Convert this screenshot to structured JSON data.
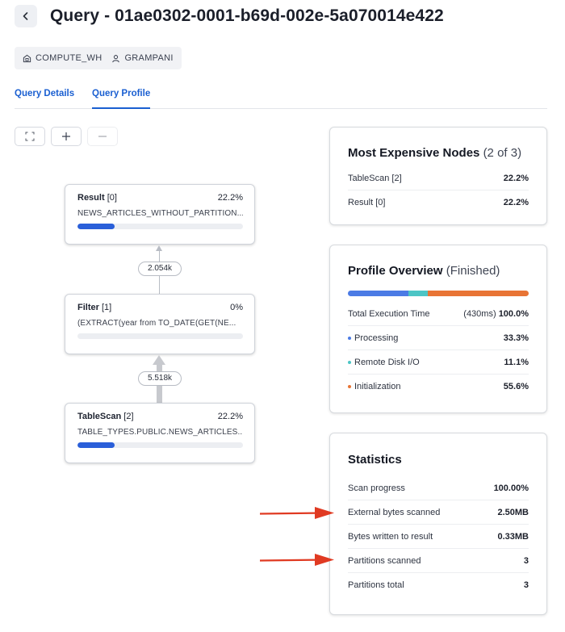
{
  "header": {
    "title": "Query - 01ae0302-0001-b69d-002e-5a070014e422"
  },
  "context": {
    "warehouse": "COMPUTE_WH",
    "user": "GRAMPANI"
  },
  "tabs": [
    {
      "label": "Query Details",
      "active": false
    },
    {
      "label": "Query Profile",
      "active": true
    }
  ],
  "toolbar": {
    "fit_icon": "fit-screen-icon",
    "zoom_in_icon": "plus-icon",
    "zoom_out_icon": "minus-icon"
  },
  "graph": {
    "nodes": [
      {
        "name": "Result",
        "id": "[0]",
        "percent": "22.2%",
        "fill": 0.222,
        "detail": "NEWS_ARTICLES_WITHOUT_PARTITION..."
      },
      {
        "name": "Filter",
        "id": "[1]",
        "percent": "0%",
        "fill": 0,
        "detail": "(EXTRACT(year from TO_DATE(GET(NE..."
      },
      {
        "name": "TableScan",
        "id": "[2]",
        "percent": "22.2%",
        "fill": 0.222,
        "detail": "TABLE_TYPES.PUBLIC.NEWS_ARTICLES..."
      }
    ],
    "edges": [
      {
        "label": "2.054k"
      },
      {
        "label": "5.518k"
      }
    ]
  },
  "expensive_nodes": {
    "title": "Most Expensive Nodes",
    "count": "(2 of 3)",
    "rows": [
      {
        "label": "TableScan [2]",
        "value": "22.2%"
      },
      {
        "label": "Result [0]",
        "value": "22.2%"
      }
    ]
  },
  "profile_overview": {
    "title": "Profile Overview",
    "status": "(Finished)",
    "total_label": "Total Execution Time",
    "total_time": "(430ms)",
    "total_value": "100.0%",
    "segments": [
      {
        "label": "Processing",
        "value": "33.3%",
        "fraction": 0.333,
        "color": "#4b7be5"
      },
      {
        "label": "Remote Disk I/O",
        "value": "11.1%",
        "fraction": 0.111,
        "color": "#4cc5c5"
      },
      {
        "label": "Initialization",
        "value": "55.6%",
        "fraction": 0.556,
        "color": "#e87435"
      }
    ]
  },
  "statistics": {
    "title": "Statistics",
    "rows": [
      {
        "label": "Scan progress",
        "value": "100.00%"
      },
      {
        "label": "External bytes scanned",
        "value": "2.50MB"
      },
      {
        "label": "Bytes written to result",
        "value": "0.33MB"
      },
      {
        "label": "Partitions scanned",
        "value": "3"
      },
      {
        "label": "Partitions total",
        "value": "3"
      }
    ]
  },
  "colors": {
    "accent": "#1a5fd1",
    "node_bar": "#2a5fd9",
    "annotation_arrow": "#e03a22"
  }
}
